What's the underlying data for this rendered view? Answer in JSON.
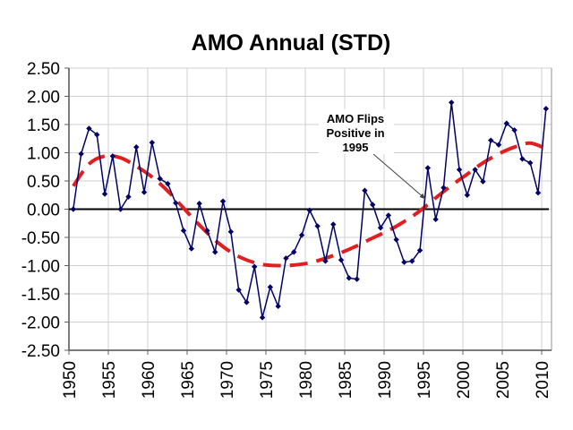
{
  "chart_data": {
    "type": "line",
    "title": "AMO Annual (STD)",
    "xlabel": "",
    "ylabel": "",
    "ylim": [
      -2.5,
      2.5
    ],
    "yticks": [
      "2.50",
      "2.00",
      "1.50",
      "1.00",
      "0.50",
      "0.00",
      "-0.50",
      "-1.00",
      "-1.50",
      "-2.00",
      "-2.50"
    ],
    "ytick_values": [
      2.5,
      2.0,
      1.5,
      1.0,
      0.5,
      0.0,
      -0.5,
      -1.0,
      -1.5,
      -2.0,
      -2.5
    ],
    "xticks": [
      "1950",
      "1955",
      "1960",
      "1965",
      "1970",
      "1975",
      "1980",
      "1985",
      "1990",
      "1995",
      "2000",
      "2005",
      "2010"
    ],
    "xlim": [
      1950,
      2011.25
    ],
    "grid": true,
    "zero_line": true,
    "series": [
      {
        "name": "AMO Annual",
        "style": "line-with-diamond-markers",
        "color": "#000066",
        "x": [
          1950,
          1951,
          1952,
          1953,
          1954,
          1955,
          1956,
          1957,
          1958,
          1959,
          1960,
          1961,
          1962,
          1963,
          1964,
          1965,
          1966,
          1967,
          1968,
          1969,
          1970,
          1971,
          1972,
          1973,
          1974,
          1975,
          1976,
          1977,
          1978,
          1979,
          1980,
          1981,
          1982,
          1983,
          1984,
          1985,
          1986,
          1987,
          1988,
          1989,
          1990,
          1991,
          1992,
          1993,
          1994,
          1995,
          1996,
          1997,
          1998,
          1999,
          2000,
          2001,
          2002,
          2003,
          2004,
          2005,
          2006,
          2007,
          2008,
          2009,
          2010
        ],
        "values": [
          0.0,
          0.98,
          1.43,
          1.32,
          0.27,
          0.94,
          0.0,
          0.22,
          1.1,
          0.3,
          1.18,
          0.54,
          0.45,
          0.11,
          -0.38,
          -0.7,
          0.1,
          -0.38,
          -0.76,
          0.14,
          -0.4,
          -1.43,
          -1.65,
          -1.02,
          -1.92,
          -1.38,
          -1.72,
          -0.87,
          -0.76,
          -0.46,
          -0.02,
          -0.3,
          -0.92,
          -0.27,
          -0.9,
          -1.22,
          -1.24,
          0.33,
          0.08,
          -0.33,
          -0.11,
          -0.54,
          -0.94,
          -0.92,
          -0.73,
          0.73,
          -0.18,
          0.38,
          1.89,
          0.7,
          0.25,
          0.7,
          0.49,
          1.22,
          1.14,
          1.52,
          1.4,
          0.89,
          0.82,
          0.29,
          1.78
        ]
      },
      {
        "name": "Trend",
        "style": "dashed-smooth",
        "color": "#e02020",
        "x": [
          1950,
          1952,
          1954,
          1956,
          1958,
          1960,
          1962,
          1964,
          1966,
          1968,
          1970,
          1972,
          1974,
          1976,
          1978,
          1980,
          1982,
          1984,
          1986,
          1988,
          1990,
          1992,
          1994,
          1996,
          1998,
          2000,
          2002,
          2004,
          2006,
          2008,
          2010
        ],
        "values": [
          0.41,
          0.8,
          0.94,
          0.91,
          0.76,
          0.57,
          0.32,
          0.02,
          -0.28,
          -0.55,
          -0.76,
          -0.9,
          -0.98,
          -1.0,
          -0.99,
          -0.95,
          -0.87,
          -0.77,
          -0.65,
          -0.51,
          -0.38,
          -0.22,
          -0.03,
          0.2,
          0.42,
          0.62,
          0.82,
          0.98,
          1.1,
          1.17,
          1.07
        ]
      }
    ],
    "annotations": [
      {
        "lines": [
          "AMO Flips",
          "Positive in",
          "1995"
        ],
        "arrow_to_x": 1994.7,
        "arrow_to_y": 0.18,
        "anchor_x": 1987.5,
        "anchor_y": 1.6
      }
    ]
  }
}
